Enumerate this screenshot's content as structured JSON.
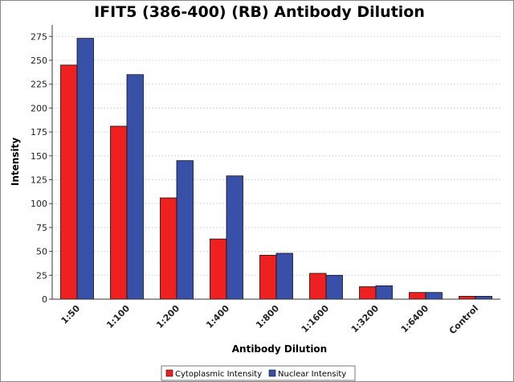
{
  "chart_data": {
    "type": "bar",
    "title": "IFIT5 (386-400) (RB) Antibody Dilution",
    "xlabel": "Antibody Dilution",
    "ylabel": "Intensity",
    "ylim": [
      0,
      287
    ],
    "yticks": [
      0,
      25,
      50,
      75,
      100,
      125,
      150,
      175,
      200,
      225,
      250,
      275
    ],
    "categories": [
      "1:50",
      "1:100",
      "1:200",
      "1:400",
      "1:800",
      "1:1600",
      "1:3200",
      "1:6400",
      "Control"
    ],
    "series": [
      {
        "name": "Cytoplasmic Intensity",
        "color": "#ee2020",
        "values": [
          245,
          181,
          106,
          63,
          46,
          27,
          13,
          7,
          3
        ]
      },
      {
        "name": "Nuclear Intensity",
        "color": "#3950a8",
        "values": [
          273,
          235,
          145,
          129,
          48,
          25,
          14,
          7,
          3
        ]
      }
    ],
    "grid": true,
    "legend": "bottom-center"
  }
}
